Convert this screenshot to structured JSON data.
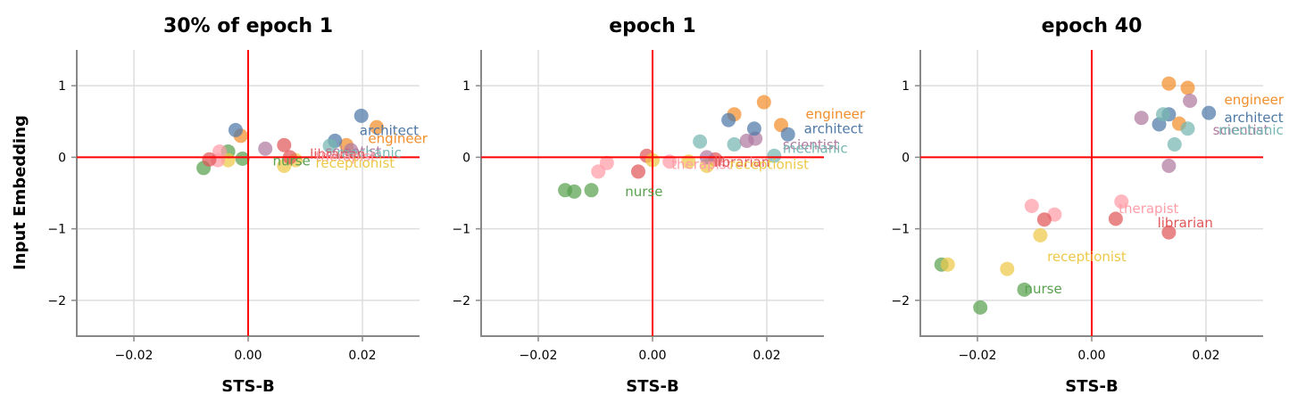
{
  "figure": {
    "ylabel": "Input Embedding"
  },
  "colors": {
    "nurse": "#59a14f",
    "receptionist": "#edc948",
    "therapist": "#ff9da7",
    "librarian": "#e15759",
    "engineer": "#f28e2b",
    "architect": "#4e79a7",
    "scientist": "#b07aa1",
    "mechanic": "#76b7b2"
  },
  "chart_data": [
    {
      "type": "scatter",
      "title": "30% of epoch 1",
      "xlabel": "STS-B",
      "ylabel": "Input Embedding",
      "xlim": [
        -0.03,
        0.03
      ],
      "ylim": [
        -2.5,
        1.5
      ],
      "xticks": [
        {
          "v": -0.02,
          "label": "−0.02"
        },
        {
          "v": 0,
          "label": "0.00"
        },
        {
          "v": 0.02,
          "label": "0.02"
        }
      ],
      "yticks": [
        {
          "v": 1,
          "label": "1"
        },
        {
          "v": 0,
          "label": "0"
        },
        {
          "v": -1,
          "label": "−1"
        },
        {
          "v": -2,
          "label": "−2"
        }
      ],
      "grid": true,
      "points": [
        {
          "c": "nurse",
          "x": -0.0078,
          "y": -0.15
        },
        {
          "c": "nurse",
          "x": -0.0035,
          "y": 0.08
        },
        {
          "c": "nurse",
          "x": -0.001,
          "y": -0.02
        },
        {
          "c": "receptionist",
          "x": -0.0035,
          "y": -0.04
        },
        {
          "c": "receptionist",
          "x": 0.0063,
          "y": -0.12
        },
        {
          "c": "receptionist",
          "x": 0.0083,
          "y": -0.04
        },
        {
          "c": "therapist",
          "x": -0.0053,
          "y": -0.04
        },
        {
          "c": "therapist",
          "x": -0.005,
          "y": 0.08
        },
        {
          "c": "librarian",
          "x": -0.0068,
          "y": -0.03
        },
        {
          "c": "librarian",
          "x": 0.0063,
          "y": 0.17
        },
        {
          "c": "librarian",
          "x": 0.0073,
          "y": 0.0
        },
        {
          "c": "engineer",
          "x": -0.0013,
          "y": 0.3
        },
        {
          "c": "engineer",
          "x": 0.0172,
          "y": 0.17
        },
        {
          "c": "engineer",
          "x": 0.0225,
          "y": 0.42
        },
        {
          "c": "architect",
          "x": -0.0022,
          "y": 0.38
        },
        {
          "c": "architect",
          "x": 0.0152,
          "y": 0.23
        },
        {
          "c": "architect",
          "x": 0.0198,
          "y": 0.58
        },
        {
          "c": "scientist",
          "x": 0.003,
          "y": 0.12
        },
        {
          "c": "scientist",
          "x": 0.018,
          "y": 0.1
        },
        {
          "c": "mechanic",
          "x": 0.0143,
          "y": 0.16
        }
      ],
      "labels": [
        {
          "text": "architect",
          "c": "architect",
          "x": 0.0195,
          "y": 0.37
        },
        {
          "text": "engineer",
          "x": 0.021,
          "y": 0.26,
          "c": "engineer"
        },
        {
          "text": "scientist",
          "x": 0.0135,
          "y": 0.08,
          "c": "scientist"
        },
        {
          "text": "mechanic",
          "x": 0.0155,
          "y": 0.06,
          "c": "mechanic"
        },
        {
          "text": "librarian",
          "x": 0.0108,
          "y": 0.04,
          "c": "librarian"
        },
        {
          "text": "therapist",
          "x": 0.0118,
          "y": 0.01,
          "c": "therapist"
        },
        {
          "text": "nurse",
          "x": 0.0043,
          "y": -0.05,
          "c": "nurse"
        },
        {
          "text": "receptionist",
          "x": 0.0118,
          "y": -0.08,
          "c": "receptionist"
        }
      ]
    },
    {
      "type": "scatter",
      "title": "epoch 1",
      "xlabel": "STS-B",
      "ylabel": "",
      "xlim": [
        -0.03,
        0.03
      ],
      "ylim": [
        -2.5,
        1.5
      ],
      "xticks": [
        {
          "v": -0.02,
          "label": "−0.02"
        },
        {
          "v": 0,
          "label": "0.00"
        },
        {
          "v": 0.02,
          "label": "0.02"
        }
      ],
      "yticks": [
        {
          "v": 1,
          "label": "1"
        },
        {
          "v": 0,
          "label": "0"
        },
        {
          "v": -1,
          "label": "−1"
        },
        {
          "v": -2,
          "label": "−2"
        }
      ],
      "grid": true,
      "points": [
        {
          "c": "nurse",
          "x": -0.0153,
          "y": -0.46
        },
        {
          "c": "nurse",
          "x": -0.0137,
          "y": -0.48
        },
        {
          "c": "nurse",
          "x": -0.0107,
          "y": -0.46
        },
        {
          "c": "therapist",
          "x": -0.0095,
          "y": -0.2
        },
        {
          "c": "therapist",
          "x": -0.008,
          "y": -0.08
        },
        {
          "c": "therapist",
          "x": 0.003,
          "y": -0.06
        },
        {
          "c": "librarian",
          "x": -0.0025,
          "y": -0.2
        },
        {
          "c": "librarian",
          "x": -0.001,
          "y": 0.02
        },
        {
          "c": "librarian",
          "x": 0.011,
          "y": -0.03
        },
        {
          "c": "receptionist",
          "x": 0.0,
          "y": -0.04
        },
        {
          "c": "receptionist",
          "x": 0.0063,
          "y": -0.06
        },
        {
          "c": "receptionist",
          "x": 0.0095,
          "y": -0.12
        },
        {
          "c": "mechanic",
          "x": 0.0083,
          "y": 0.22
        },
        {
          "c": "mechanic",
          "x": 0.0143,
          "y": 0.18
        },
        {
          "c": "mechanic",
          "x": 0.0213,
          "y": 0.02
        },
        {
          "c": "scientist",
          "x": 0.0095,
          "y": 0.0
        },
        {
          "c": "scientist",
          "x": 0.0165,
          "y": 0.23
        },
        {
          "c": "scientist",
          "x": 0.018,
          "y": 0.26
        },
        {
          "c": "engineer",
          "x": 0.0143,
          "y": 0.6
        },
        {
          "c": "engineer",
          "x": 0.0195,
          "y": 0.77
        },
        {
          "c": "engineer",
          "x": 0.0225,
          "y": 0.45
        },
        {
          "c": "architect",
          "x": 0.0133,
          "y": 0.52
        },
        {
          "c": "architect",
          "x": 0.0178,
          "y": 0.4
        },
        {
          "c": "architect",
          "x": 0.0237,
          "y": 0.32
        }
      ],
      "labels": [
        {
          "text": "engineer",
          "c": "engineer",
          "x": 0.0268,
          "y": 0.6
        },
        {
          "text": "architect",
          "c": "architect",
          "x": 0.0265,
          "y": 0.4
        },
        {
          "text": "scientist",
          "x": 0.0228,
          "y": 0.17,
          "c": "scientist"
        },
        {
          "text": "mechanic",
          "x": 0.0228,
          "y": 0.12,
          "c": "mechanic"
        },
        {
          "text": "therapist",
          "x": 0.0033,
          "y": -0.1,
          "c": "therapist"
        },
        {
          "text": "librarian",
          "x": 0.0108,
          "y": -0.07,
          "c": "librarian"
        },
        {
          "text": "receptionist",
          "x": 0.0135,
          "y": -0.1,
          "c": "receptionist"
        },
        {
          "text": "nurse",
          "x": -0.0048,
          "y": -0.48,
          "c": "nurse"
        }
      ]
    },
    {
      "type": "scatter",
      "title": "epoch 40",
      "xlabel": "STS-B",
      "ylabel": "",
      "xlim": [
        -0.03,
        0.03
      ],
      "ylim": [
        -2.5,
        1.5
      ],
      "xticks": [
        {
          "v": -0.02,
          "label": "−0.02"
        },
        {
          "v": 0,
          "label": "0.00"
        },
        {
          "v": 0.02,
          "label": "0.02"
        }
      ],
      "yticks": [
        {
          "v": 1,
          "label": "1"
        },
        {
          "v": 0,
          "label": "0"
        },
        {
          "v": -1,
          "label": "−1"
        },
        {
          "v": -2,
          "label": "−2"
        }
      ],
      "grid": true,
      "points": [
        {
          "c": "nurse",
          "x": -0.0263,
          "y": -1.5
        },
        {
          "c": "nurse",
          "x": -0.0195,
          "y": -2.1
        },
        {
          "c": "nurse",
          "x": -0.0118,
          "y": -1.85
        },
        {
          "c": "receptionist",
          "x": -0.0252,
          "y": -1.5
        },
        {
          "c": "receptionist",
          "x": -0.0148,
          "y": -1.56
        },
        {
          "c": "receptionist",
          "x": -0.009,
          "y": -1.09
        },
        {
          "c": "therapist",
          "x": -0.0105,
          "y": -0.68
        },
        {
          "c": "therapist",
          "x": -0.0065,
          "y": -0.8
        },
        {
          "c": "therapist",
          "x": 0.0052,
          "y": -0.62
        },
        {
          "c": "librarian",
          "x": -0.0083,
          "y": -0.87
        },
        {
          "c": "librarian",
          "x": 0.0042,
          "y": -0.86
        },
        {
          "c": "librarian",
          "x": 0.0135,
          "y": -1.05
        },
        {
          "c": "engineer",
          "x": 0.0135,
          "y": 1.03
        },
        {
          "c": "engineer",
          "x": 0.0168,
          "y": 0.97
        },
        {
          "c": "engineer",
          "x": 0.0153,
          "y": 0.47
        },
        {
          "c": "architect",
          "x": 0.0118,
          "y": 0.46
        },
        {
          "c": "architect",
          "x": 0.0135,
          "y": 0.6
        },
        {
          "c": "architect",
          "x": 0.0205,
          "y": 0.62
        },
        {
          "c": "mechanic",
          "x": 0.0125,
          "y": 0.6
        },
        {
          "c": "mechanic",
          "x": 0.0168,
          "y": 0.4
        },
        {
          "c": "mechanic",
          "x": 0.0145,
          "y": 0.18
        },
        {
          "c": "scientist",
          "x": 0.0087,
          "y": 0.55
        },
        {
          "c": "scientist",
          "x": 0.0135,
          "y": -0.12
        },
        {
          "c": "scientist",
          "x": 0.0172,
          "y": 0.79
        }
      ],
      "labels": [
        {
          "text": "engineer",
          "c": "engineer",
          "x": 0.0232,
          "y": 0.8
        },
        {
          "text": "architect",
          "c": "architect",
          "x": 0.0232,
          "y": 0.55
        },
        {
          "text": "scientist",
          "x": 0.0212,
          "y": 0.38,
          "c": "scientist"
        },
        {
          "text": "mechanic",
          "x": 0.0222,
          "y": 0.38,
          "c": "mechanic"
        },
        {
          "text": "therapist",
          "x": 0.0047,
          "y": -0.72,
          "c": "therapist"
        },
        {
          "text": "librarian",
          "x": 0.0115,
          "y": -0.92,
          "c": "librarian"
        },
        {
          "text": "receptionist",
          "x": -0.0078,
          "y": -1.39,
          "c": "receptionist"
        },
        {
          "text": "nurse",
          "x": -0.0118,
          "y": -1.84,
          "c": "nurse"
        }
      ]
    }
  ]
}
